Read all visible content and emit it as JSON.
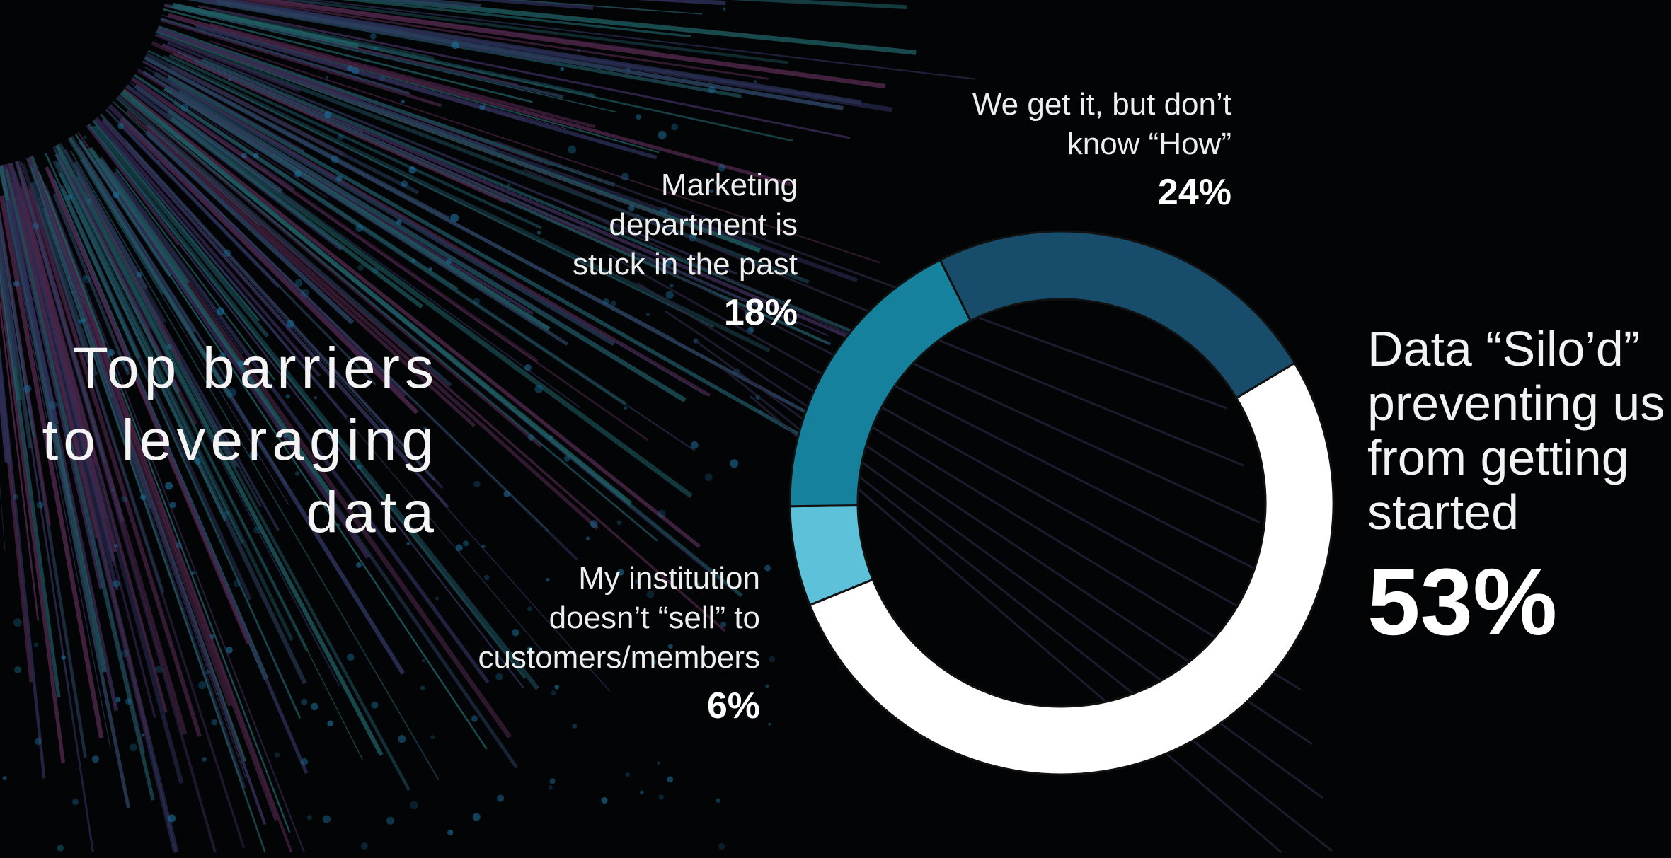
{
  "chart_data": {
    "type": "pie",
    "variant": "donut",
    "title": "Top barriers to leveraging data",
    "slices": [
      {
        "label": "Data “Silo’d” preventing us from getting started",
        "lines": [
          "Data “Silo’d”",
          "preventing us",
          "from getting",
          "started"
        ],
        "value": 53,
        "display": "53%",
        "color": "#ffffff"
      },
      {
        "label": "My institution doesn’t “sell” to customers/members",
        "lines": [
          "My institution",
          "doesn’t “sell” to",
          "customers/members"
        ],
        "value": 6,
        "display": "6%",
        "color": "#5ec1da"
      },
      {
        "label": "Marketing department is stuck in the past",
        "lines": [
          "Marketing",
          "department is",
          "stuck in the past"
        ],
        "value": 18,
        "display": "18%",
        "color": "#16819c"
      },
      {
        "label": "We get it, but don’t know “How”",
        "lines": [
          "We get it, but don’t",
          "know “How”"
        ],
        "value": 24,
        "display": "24%",
        "color": "#174d6a"
      }
    ],
    "title_lines": [
      "Top barriers",
      "to leveraging",
      "data"
    ]
  }
}
